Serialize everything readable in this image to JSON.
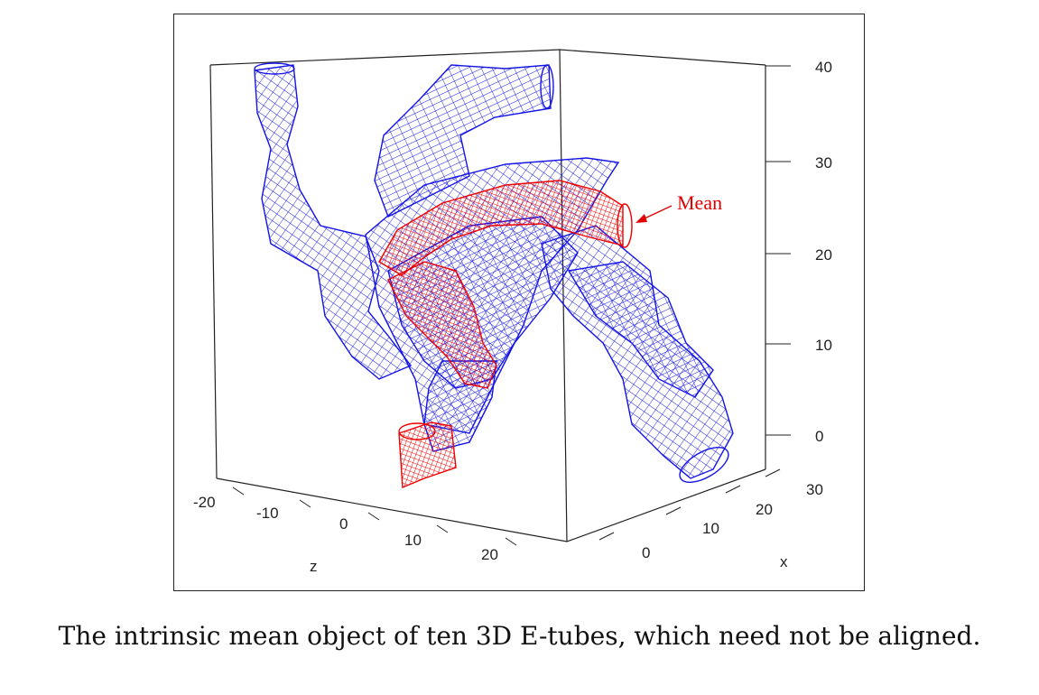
{
  "figure": {
    "annotation": "Mean",
    "caption": "The intrinsic mean object of ten 3D E-tubes, which need not be aligned.",
    "colors": {
      "tubes": "#1414e6",
      "mean_tube": "#ee0000",
      "box": "#222222"
    }
  },
  "axes": {
    "y": {
      "ticks": [
        "40",
        "30",
        "20",
        "10",
        "0"
      ]
    },
    "z": {
      "name": "z",
      "ticks": [
        "-20",
        "-10",
        "0",
        "10",
        "20"
      ]
    },
    "x": {
      "name": "x",
      "ticks": [
        "0",
        "10",
        "20",
        "30"
      ]
    }
  }
}
